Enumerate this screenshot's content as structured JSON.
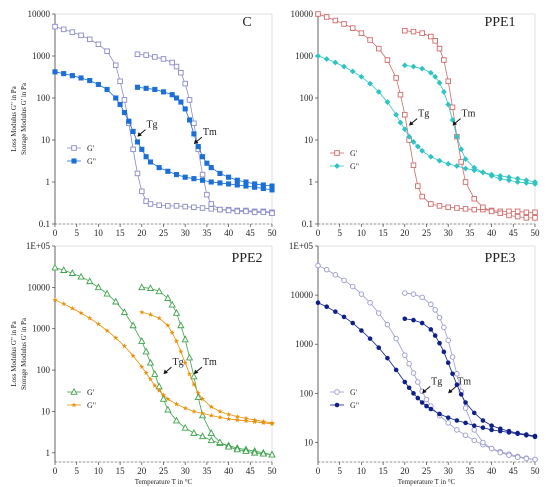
{
  "chart_data": [
    {
      "type": "line",
      "title": "C",
      "log_y": true,
      "xlim": [
        0,
        50
      ],
      "ylim": [
        0.1,
        10000
      ],
      "xticks": [
        "0",
        "5",
        "10",
        "15",
        "20",
        "25",
        "30",
        "35",
        "40",
        "45",
        "50"
      ],
      "yticks": [
        "0.1",
        "1",
        "10",
        "100",
        "1000",
        "10000"
      ],
      "ylabel_lines": [
        "Loss Modulus G\" in Pa",
        "Storage Modulus G' in Pa"
      ],
      "xlabel": "",
      "legend": "left-middle",
      "annotations": [
        {
          "text": "Tg",
          "x": 19,
          "y": 12
        },
        {
          "text": "Tm",
          "x": 32,
          "y": 8
        }
      ],
      "series": [
        {
          "name": "G'",
          "color": "#8a8ac8",
          "marker": "open-square",
          "x": [
            0,
            2,
            4,
            6,
            8,
            10,
            12,
            14,
            15,
            16,
            17,
            18,
            19,
            20,
            21,
            22,
            24,
            26,
            28,
            30,
            32,
            34,
            36,
            38,
            40,
            42,
            44,
            46,
            48,
            50
          ],
          "y": [
            5000,
            4300,
            3700,
            3100,
            2500,
            1900,
            1300,
            600,
            250,
            90,
            25,
            6,
            1.6,
            0.6,
            0.35,
            0.3,
            0.28,
            0.27,
            0.27,
            0.26,
            0.25,
            0.24,
            0.23,
            0.22,
            0.22,
            0.21,
            0.21,
            0.2,
            0.2,
            0.19
          ]
        },
        {
          "name": "",
          "color": "#8a8ac8",
          "marker": "open-square",
          "x": [
            19,
            21,
            23,
            25,
            27,
            28,
            29,
            30,
            31,
            32,
            33,
            34,
            35,
            36,
            38,
            40,
            42,
            44,
            46,
            48,
            50
          ],
          "y": [
            1100,
            1050,
            950,
            850,
            700,
            560,
            400,
            220,
            90,
            25,
            6,
            1.5,
            0.5,
            0.3,
            0.22,
            0.21,
            0.2,
            0.2,
            0.19,
            0.19,
            0.18
          ]
        },
        {
          "name": "G\"",
          "color": "#1b6fd6",
          "marker": "filled-square",
          "x": [
            0,
            2,
            4,
            6,
            8,
            10,
            12,
            14,
            15,
            16,
            17,
            18,
            19,
            20,
            21,
            22,
            24,
            26,
            28,
            30,
            32,
            34,
            36,
            38,
            40,
            42,
            44,
            46,
            48,
            50
          ],
          "y": [
            420,
            380,
            340,
            300,
            260,
            210,
            160,
            100,
            70,
            45,
            28,
            16,
            9,
            6,
            4,
            3,
            2.2,
            1.8,
            1.5,
            1.3,
            1.2,
            1.1,
            1,
            0.95,
            0.9,
            0.85,
            0.8,
            0.75,
            0.7,
            0.65
          ]
        },
        {
          "name": "",
          "color": "#1b6fd6",
          "marker": "filled-square",
          "x": [
            19,
            21,
            23,
            25,
            27,
            28,
            29,
            30,
            31,
            32,
            33,
            34,
            35,
            36,
            38,
            40,
            42,
            44,
            46,
            48,
            50
          ],
          "y": [
            180,
            170,
            160,
            140,
            120,
            100,
            80,
            55,
            30,
            14,
            7,
            4,
            2.8,
            2.2,
            1.6,
            1.3,
            1.1,
            1,
            0.9,
            0.85,
            0.8
          ]
        }
      ]
    },
    {
      "type": "line",
      "title": "PPE1",
      "log_y": true,
      "xlim": [
        0,
        50
      ],
      "ylim": [
        0.1,
        10000
      ],
      "xticks": [
        "0",
        "5",
        "10",
        "15",
        "20",
        "25",
        "30",
        "35",
        "40",
        "45",
        "50"
      ],
      "yticks": [
        "0.1",
        "1",
        "10",
        "100",
        "1000",
        "10000"
      ],
      "ylabel_lines": [],
      "xlabel": "",
      "legend": "left-middle",
      "annotations": [
        {
          "text": "Tg",
          "x": 21,
          "y": 22
        },
        {
          "text": "Tm",
          "x": 31,
          "y": 22
        }
      ],
      "series": [
        {
          "name": "G'",
          "color": "#d06a6a",
          "marker": "open-square",
          "x": [
            0,
            2,
            4,
            6,
            8,
            10,
            12,
            14,
            16,
            18,
            19,
            20,
            21,
            22,
            23,
            24,
            26,
            28,
            30,
            32,
            34,
            36,
            38,
            40,
            42,
            44,
            46,
            48,
            50
          ],
          "y": [
            10000,
            8500,
            7000,
            5800,
            4600,
            3500,
            2400,
            1500,
            800,
            300,
            120,
            40,
            10,
            2.5,
            0.8,
            0.45,
            0.3,
            0.27,
            0.25,
            0.24,
            0.23,
            0.22,
            0.22,
            0.21,
            0.2,
            0.2,
            0.2,
            0.19,
            0.19
          ]
        },
        {
          "name": "",
          "color": "#d06a6a",
          "marker": "open-square",
          "x": [
            20,
            22,
            24,
            26,
            27,
            28,
            29,
            30,
            31,
            32,
            33,
            34,
            36,
            38,
            40,
            42,
            44,
            46,
            48,
            50
          ],
          "y": [
            4000,
            3800,
            3500,
            2900,
            2300,
            1500,
            800,
            250,
            60,
            12,
            3,
            1,
            0.4,
            0.25,
            0.2,
            0.18,
            0.16,
            0.15,
            0.14,
            0.14
          ]
        },
        {
          "name": "G\"",
          "color": "#2ec4c4",
          "marker": "filled-diamond",
          "x": [
            0,
            2,
            4,
            6,
            8,
            10,
            12,
            14,
            16,
            18,
            19,
            20,
            21,
            22,
            23,
            24,
            26,
            28,
            30,
            32,
            34,
            36,
            38,
            40,
            42,
            44,
            46,
            48,
            50
          ],
          "y": [
            1000,
            850,
            700,
            560,
            430,
            320,
            220,
            140,
            80,
            40,
            26,
            18,
            12,
            9,
            7,
            5.5,
            4,
            3.2,
            2.7,
            2.4,
            2.1,
            1.9,
            1.7,
            1.5,
            1.4,
            1.3,
            1.2,
            1.1,
            1
          ]
        },
        {
          "name": "",
          "color": "#2ec4c4",
          "marker": "filled-diamond",
          "x": [
            20,
            22,
            24,
            26,
            27,
            28,
            29,
            30,
            31,
            32,
            33,
            34,
            36,
            38,
            40,
            42,
            44,
            46,
            48,
            50
          ],
          "y": [
            600,
            560,
            500,
            400,
            320,
            230,
            140,
            70,
            30,
            12,
            6,
            3.5,
            2.2,
            1.7,
            1.4,
            1.2,
            1.1,
            1,
            0.95,
            0.9
          ]
        }
      ]
    },
    {
      "type": "line",
      "title": "PPE2",
      "log_y": true,
      "xlim": [
        0,
        50
      ],
      "ylim": [
        0.6,
        100000
      ],
      "xticks": [
        "0",
        "5",
        "10",
        "15",
        "20",
        "25",
        "30",
        "35",
        "40",
        "45",
        "50"
      ],
      "yticks": [
        "1",
        "10",
        "100",
        "1000",
        "10000",
        "1E+05"
      ],
      "ylabel_lines": [
        "Loss Modulus G\" in Pa",
        "Storage Modulus G' in Pa"
      ],
      "xlabel": "Temperature T in °C",
      "legend": "left-bottom",
      "annotations": [
        {
          "text": "Tg",
          "x": 25,
          "y": 80
        },
        {
          "text": "Tm",
          "x": 32,
          "y": 80
        }
      ],
      "series": [
        {
          "name": "G'",
          "color": "#3fa34d",
          "marker": "open-triangle",
          "x": [
            0,
            2,
            4,
            6,
            8,
            10,
            12,
            14,
            16,
            18,
            20,
            21,
            22,
            23,
            24,
            25,
            26,
            28,
            30,
            32,
            34,
            36,
            38,
            40,
            42,
            44,
            46,
            48,
            50
          ],
          "y": [
            30000,
            26000,
            22000,
            18000,
            14000,
            10000,
            7000,
            4500,
            2500,
            1200,
            500,
            280,
            150,
            80,
            40,
            20,
            11,
            6,
            4,
            3,
            2.5,
            2,
            1.7,
            1.5,
            1.3,
            1.2,
            1.1,
            1,
            0.9
          ]
        },
        {
          "name": "",
          "color": "#3fa34d",
          "marker": "open-triangle",
          "x": [
            20,
            22,
            24,
            26,
            27,
            28,
            29,
            30,
            31,
            32,
            33,
            34,
            36,
            38,
            40,
            42,
            44,
            46,
            48,
            50
          ],
          "y": [
            10000,
            9500,
            8000,
            5500,
            3800,
            2400,
            1200,
            550,
            200,
            70,
            22,
            8,
            3,
            1.8,
            1.4,
            1.2,
            1.1,
            1,
            0.95,
            0.9
          ]
        },
        {
          "name": "G\"",
          "color": "#e8900a",
          "marker": "star",
          "x": [
            0,
            2,
            4,
            6,
            8,
            10,
            12,
            14,
            16,
            18,
            20,
            21,
            22,
            23,
            24,
            25,
            26,
            28,
            30,
            32,
            34,
            36,
            38,
            40,
            42,
            44,
            46,
            48,
            50
          ],
          "y": [
            5000,
            4000,
            3100,
            2400,
            1800,
            1300,
            900,
            600,
            380,
            220,
            120,
            85,
            60,
            42,
            32,
            25,
            20,
            15,
            12,
            10,
            9,
            8,
            7.2,
            6.6,
            6.2,
            5.9,
            5.6,
            5.3,
            5
          ]
        },
        {
          "name": "",
          "color": "#e8900a",
          "marker": "star",
          "x": [
            20,
            22,
            24,
            26,
            27,
            28,
            29,
            30,
            31,
            32,
            33,
            34,
            36,
            38,
            40,
            42,
            44,
            46,
            48,
            50
          ],
          "y": [
            2500,
            2200,
            1800,
            1200,
            800,
            500,
            280,
            150,
            80,
            45,
            28,
            20,
            13,
            10,
            8.5,
            7.5,
            6.8,
            6.2,
            5.7,
            5.3
          ]
        }
      ]
    },
    {
      "type": "line",
      "title": "PPE3",
      "log_y": true,
      "xlim": [
        0,
        50
      ],
      "ylim": [
        4,
        100000
      ],
      "xticks": [
        "0",
        "5",
        "10",
        "15",
        "20",
        "25",
        "30",
        "35",
        "40",
        "45",
        "50"
      ],
      "yticks": [
        "10",
        "100",
        "1000",
        "10000",
        "1E+05"
      ],
      "ylabel_lines": [],
      "xlabel": "Temperature T in °C",
      "legend": "left-bottom",
      "annotations": [
        {
          "text": "Tg",
          "x": 24,
          "y": 100
        },
        {
          "text": "Tm",
          "x": 30,
          "y": 100
        }
      ],
      "series": [
        {
          "name": "G'",
          "color": "#9a9ad0",
          "marker": "open-circle",
          "x": [
            0,
            2,
            4,
            6,
            8,
            10,
            12,
            14,
            16,
            18,
            20,
            21,
            22,
            23,
            24,
            25,
            26,
            28,
            30,
            32,
            34,
            36,
            38,
            40,
            42,
            44,
            46,
            48,
            50
          ],
          "y": [
            40000,
            33000,
            26000,
            20000,
            15000,
            10500,
            7000,
            4300,
            2500,
            1300,
            600,
            400,
            260,
            170,
            110,
            75,
            55,
            35,
            25,
            18,
            14,
            11,
            9,
            7.5,
            6.5,
            5.8,
            5.2,
            4.8,
            4.5
          ]
        },
        {
          "name": "",
          "color": "#9a9ad0",
          "marker": "open-circle",
          "x": [
            20,
            22,
            24,
            26,
            27,
            28,
            29,
            30,
            31,
            32,
            33,
            34,
            36,
            38,
            40,
            42,
            44,
            46,
            48,
            50
          ],
          "y": [
            11000,
            10500,
            9000,
            6500,
            5000,
            3500,
            2200,
            1200,
            550,
            250,
            110,
            50,
            18,
            10,
            7.5,
            6.2,
            5.5,
            5,
            4.7,
            4.5
          ]
        },
        {
          "name": "G\"",
          "color": "#10208a",
          "marker": "filled-circle",
          "x": [
            0,
            2,
            4,
            6,
            8,
            10,
            12,
            14,
            16,
            18,
            20,
            21,
            22,
            23,
            24,
            25,
            26,
            28,
            30,
            32,
            34,
            36,
            38,
            40,
            42,
            44,
            46,
            48,
            50
          ],
          "y": [
            7000,
            5800,
            4600,
            3600,
            2700,
            1900,
            1300,
            850,
            520,
            300,
            170,
            130,
            100,
            80,
            65,
            55,
            48,
            38,
            32,
            28,
            25,
            22,
            20,
            18,
            17,
            16,
            15,
            14,
            13
          ]
        },
        {
          "name": "",
          "color": "#10208a",
          "marker": "filled-circle",
          "x": [
            20,
            22,
            24,
            26,
            27,
            28,
            29,
            30,
            31,
            32,
            33,
            34,
            36,
            38,
            40,
            42,
            44,
            46,
            48,
            50
          ],
          "y": [
            3300,
            3100,
            2700,
            2000,
            1500,
            1050,
            700,
            420,
            250,
            150,
            95,
            65,
            40,
            28,
            22,
            19,
            17,
            15.5,
            14.5,
            13.5
          ]
        }
      ]
    }
  ]
}
